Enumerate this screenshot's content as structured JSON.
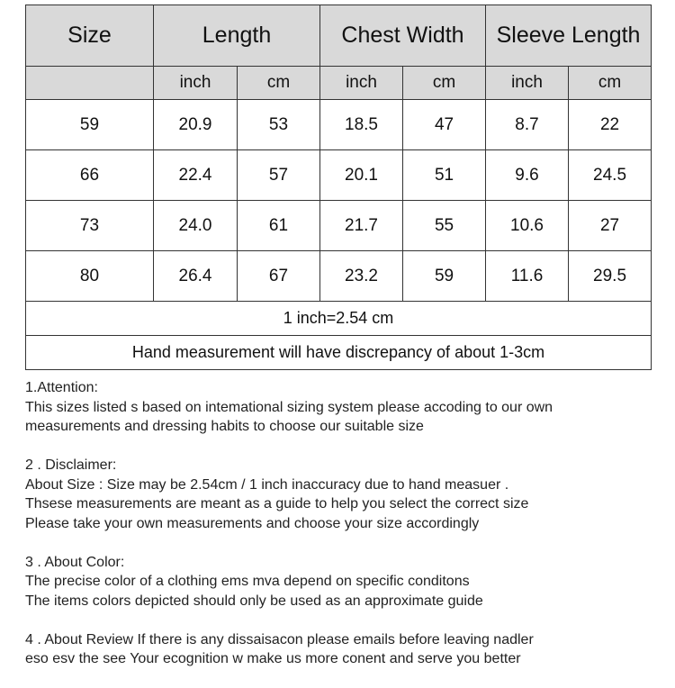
{
  "table": {
    "headers": [
      "Size",
      "Length",
      "Chest Width",
      "Sleeve Length"
    ],
    "units": [
      "inch",
      "cm",
      "inch",
      "cm",
      "inch",
      "cm"
    ],
    "rows": [
      [
        "59",
        "20.9",
        "53",
        "18.5",
        "47",
        "8.7",
        "22"
      ],
      [
        "66",
        "22.4",
        "57",
        "20.1",
        "51",
        "9.6",
        "24.5"
      ],
      [
        "73",
        "24.0",
        "61",
        "21.7",
        "55",
        "10.6",
        "27"
      ],
      [
        "80",
        "26.4",
        "67",
        "23.2",
        "59",
        "11.6",
        "29.5"
      ]
    ],
    "conversion_note": "1 inch=2.54 cm",
    "discrepancy_note": "Hand measurement will have discrepancy of about 1-3cm"
  },
  "notes": [
    {
      "title": "1.Attention:",
      "lines": [
        "This sizes listed s based on intemational sizing system please accoding to our own",
        "measurements and dressing habits to choose our suitable size"
      ]
    },
    {
      "title": "2 . Disclaimer:",
      "lines": [
        "About Size : Size may be 2.54cm / 1 inch inaccuracy due to hand measuer .",
        "Thsese  measurements are meant as a guide to help you select the correct size",
        "Please take your own measurements and choose your size accordingly"
      ]
    },
    {
      "title": "3 . About Color:",
      "lines": [
        "The precise color of a clothing ems mva depend on specific conditons",
        "The items colors depicted should only be used as an approximate guide"
      ]
    },
    {
      "title": "4 . About Review If there is any dissaisacon please emails before leaving nadler",
      "lines": [
        "eso esv the see Your ecognition w make us more conent and serve you better"
      ]
    }
  ]
}
